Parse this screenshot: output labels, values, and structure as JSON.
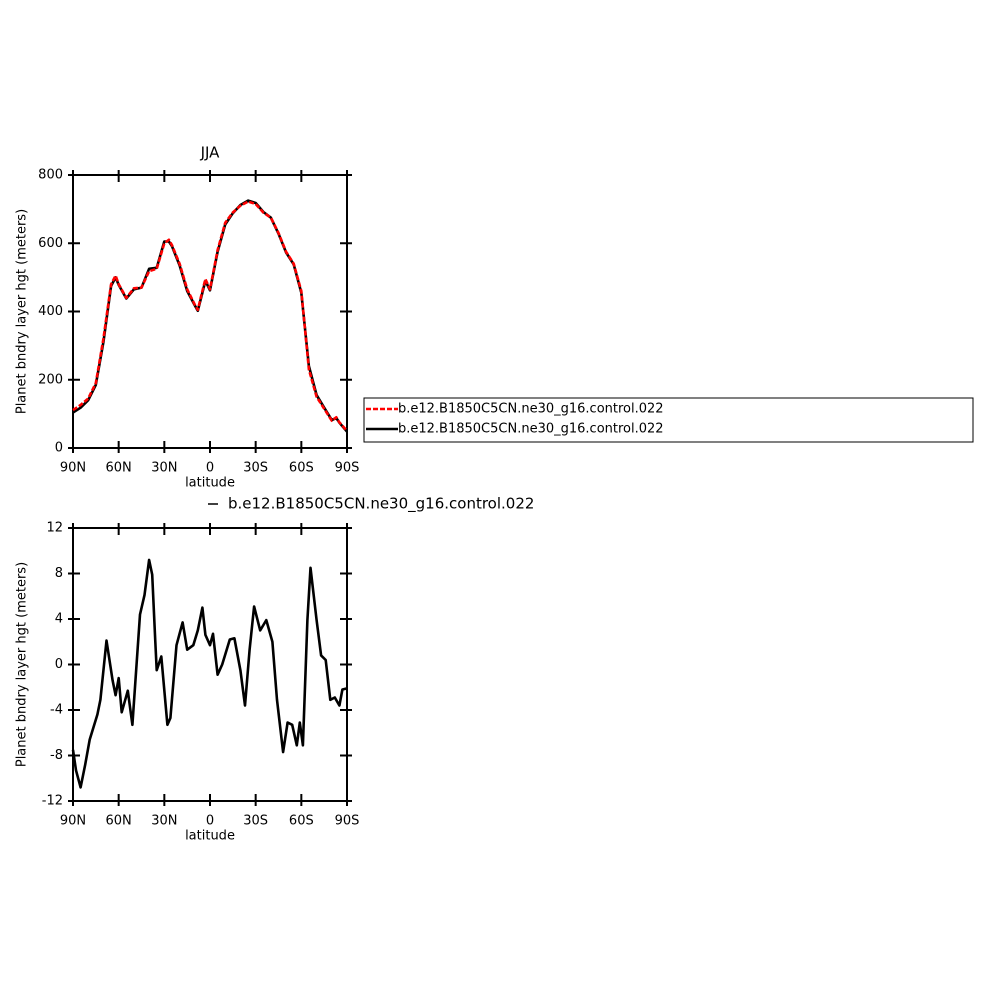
{
  "chart_data": [
    {
      "type": "line",
      "title": "JJA",
      "xlabel": "latitude",
      "ylabel": "Planet bndry layer hgt (meters)",
      "x": [
        90,
        85,
        80,
        75,
        70,
        65,
        62,
        60,
        55,
        50,
        45,
        40,
        35,
        30,
        27,
        25,
        20,
        15,
        10,
        8,
        5,
        3,
        0,
        -5,
        -10,
        -15,
        -20,
        -25,
        -30,
        -35,
        -40,
        -45,
        -50,
        -55,
        -60,
        -65,
        -70,
        -75,
        -80,
        -83,
        -85,
        -90
      ],
      "series": [
        {
          "name": "b.e12.B1850C5CN.ne30_g16.control.022",
          "color": "#000000",
          "dash": false,
          "values": [
            104,
            118,
            140,
            185,
            310,
            475,
            500,
            478,
            438,
            465,
            470,
            525,
            528,
            605,
            605,
            592,
            535,
            460,
            418,
            402,
            455,
            490,
            462,
            575,
            655,
            688,
            712,
            725,
            718,
            692,
            675,
            628,
            573,
            538,
            455,
            240,
            155,
            118,
            82,
            88,
            74,
            48
          ]
        },
        {
          "name": "b.e12.B1850C5CN.ne30_g16.control.022",
          "color": "#ff0000",
          "dash": true,
          "values": [
            111,
            126,
            145,
            190,
            320,
            480,
            505,
            480,
            440,
            468,
            470,
            518,
            525,
            600,
            610,
            595,
            540,
            465,
            420,
            405,
            460,
            495,
            465,
            580,
            660,
            690,
            710,
            722,
            715,
            690,
            675,
            630,
            575,
            540,
            460,
            230,
            150,
            115,
            80,
            90,
            75,
            50
          ]
        }
      ],
      "legend": "right",
      "xlim": [
        90,
        -90
      ],
      "xticks": [
        {
          "value": 90,
          "label": "90N"
        },
        {
          "value": 60,
          "label": "60N"
        },
        {
          "value": 30,
          "label": "30N"
        },
        0,
        {
          "value": -30,
          "label": "30S"
        },
        {
          "value": -60,
          "label": "60S"
        },
        {
          "value": -90,
          "label": "90S"
        }
      ],
      "ylim": [
        0,
        800
      ],
      "yticks": [
        0,
        200,
        400,
        600,
        800
      ]
    },
    {
      "type": "line",
      "xlabel": "latitude",
      "ylabel": "Planet bndry layer hgt (meters)",
      "x": [
        90,
        88,
        85,
        82,
        79,
        74,
        72,
        68,
        64,
        62,
        60,
        58,
        54,
        51,
        46,
        43,
        40,
        38,
        36,
        35,
        32,
        28,
        26,
        22,
        18,
        15,
        11,
        8,
        5,
        3,
        0,
        -2,
        -5,
        -8,
        -13,
        -16,
        -20,
        -23,
        -26,
        -29,
        -33,
        -37,
        -41,
        -44,
        -48,
        -51,
        -54,
        -57,
        -59,
        -61,
        -64,
        -66,
        -70,
        -73,
        -76,
        -79,
        -82,
        -85,
        -87,
        -90
      ],
      "series": [
        {
          "name": "b.e12.B1850C5CN.ne30_g16.control.022",
          "color": "#000000",
          "dash": false,
          "values": [
            -7.5,
            -9.3,
            -10.8,
            -8.8,
            -6.6,
            -4.4,
            -3.1,
            2.1,
            -1.4,
            -2.7,
            -1.2,
            -4.2,
            -2.3,
            -5.3,
            4.4,
            6.1,
            9.2,
            7.9,
            2.2,
            -0.5,
            0.7,
            -5.3,
            -4.7,
            1.7,
            3.7,
            1.3,
            1.7,
            3.0,
            5.0,
            2.6,
            1.7,
            2.7,
            -0.9,
            0,
            2.2,
            2.3,
            -0.5,
            -3.6,
            1.3,
            5.1,
            3.0,
            3.9,
            2.0,
            -3.1,
            -7.7,
            -5.1,
            -5.3,
            -7.1,
            -5.1,
            -7.1,
            3.9,
            8.5,
            3.9,
            0.8,
            0.4,
            -3.1,
            -2.9,
            -3.6,
            -2.2,
            -2.1
          ]
        }
      ],
      "legend": "top",
      "xlim": [
        90,
        -90
      ],
      "xticks": [
        {
          "value": 90,
          "label": "90N"
        },
        {
          "value": 60,
          "label": "60N"
        },
        {
          "value": 30,
          "label": "30N"
        },
        0,
        {
          "value": -30,
          "label": "30S"
        },
        {
          "value": -60,
          "label": "60S"
        },
        {
          "value": -90,
          "label": "90S"
        }
      ],
      "ylim": [
        -12,
        12
      ],
      "yticks": [
        -12,
        -8,
        -4,
        0,
        4,
        8,
        12
      ]
    }
  ]
}
